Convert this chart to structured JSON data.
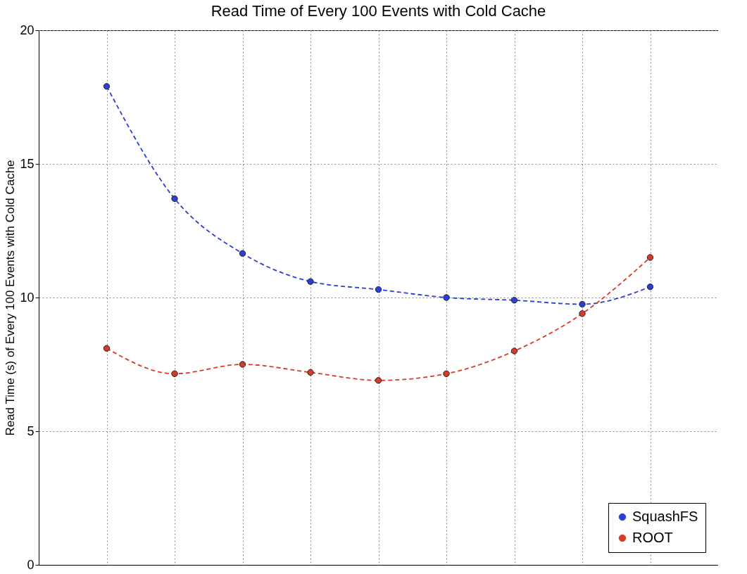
{
  "chart_data": {
    "type": "line",
    "title": "Read Time of Every 100 Events with Cold Cache",
    "ylabel": "Read Time (s) of Every 100 Events with Cold Cache",
    "categories": [
      null,
      null,
      null,
      null,
      null,
      null,
      null,
      null,
      null
    ],
    "series": [
      {
        "name": "SquashFS",
        "color": "#2b3fd6",
        "values": [
          17.9,
          13.7,
          11.65,
          10.6,
          10.3,
          10.0,
          9.9,
          9.75,
          10.4
        ]
      },
      {
        "name": "ROOT",
        "color": "#d63a2a",
        "values": [
          8.1,
          7.15,
          7.5,
          7.2,
          6.9,
          7.15,
          8.0,
          9.4,
          11.5
        ]
      }
    ],
    "ylim": [
      0,
      20
    ],
    "yticks": [
      0,
      5,
      10,
      15,
      20
    ],
    "grid": true,
    "legend": "bottom right",
    "marker": "circle",
    "line_style": "dashed",
    "tick_labels": "y"
  }
}
